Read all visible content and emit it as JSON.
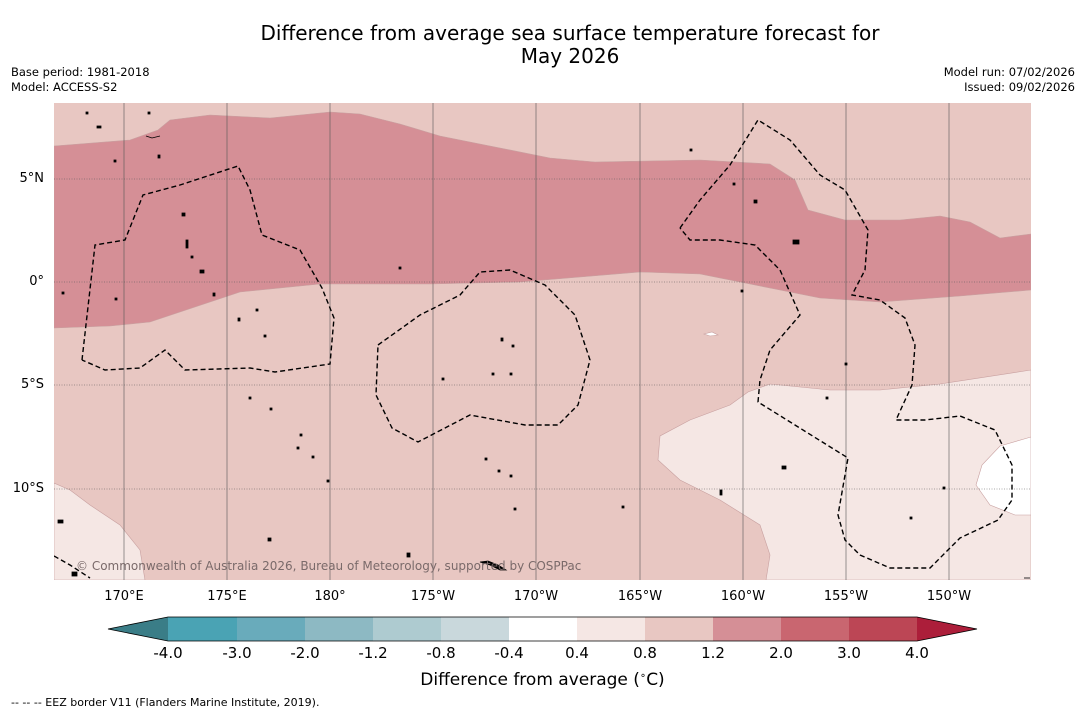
{
  "title": {
    "line1": "Difference from average sea surface temperature forecast for",
    "line2": "May 2026"
  },
  "meta_left": {
    "base_period": "Base period: 1981-2018",
    "model": "Model: ACCESS-S2"
  },
  "meta_right": {
    "model_run": "Model run: 07/02/2026",
    "issued": "Issued: 09/02/2026"
  },
  "map": {
    "lat_labels": [
      "5°N",
      "0°",
      "5°S",
      "10°S"
    ],
    "lon_labels": [
      "170°E",
      "175°E",
      "180°",
      "175°W",
      "170°W",
      "165°W",
      "160°W",
      "155°W",
      "150°W"
    ],
    "copyright": "© Commonwealth of Australia 2026, Bureau of Meteorology, supported by COSPPac"
  },
  "colorbar": {
    "tick_labels": [
      "-4.0",
      "-3.0",
      "-2.0",
      "-1.2",
      "-0.8",
      "-0.4",
      "0.4",
      "0.8",
      "1.2",
      "2.0",
      "3.0",
      "4.0"
    ],
    "colors": [
      "#3a7d87",
      "#4aa3b4",
      "#69abbb",
      "#8db9c3",
      "#aecbd0",
      "#c9d8dc",
      "#ffffff",
      "#f5e7e4",
      "#e8c7c2",
      "#d58f96",
      "#c96670",
      "#bc4655",
      "#ac1e3a"
    ],
    "title_text": "Difference from average (",
    "title_unit_deg": "∘",
    "title_unit_c": "C)"
  },
  "footnote": "--  --  -- EEZ border V11 (Flanders Marine Institute, 2019)."
}
